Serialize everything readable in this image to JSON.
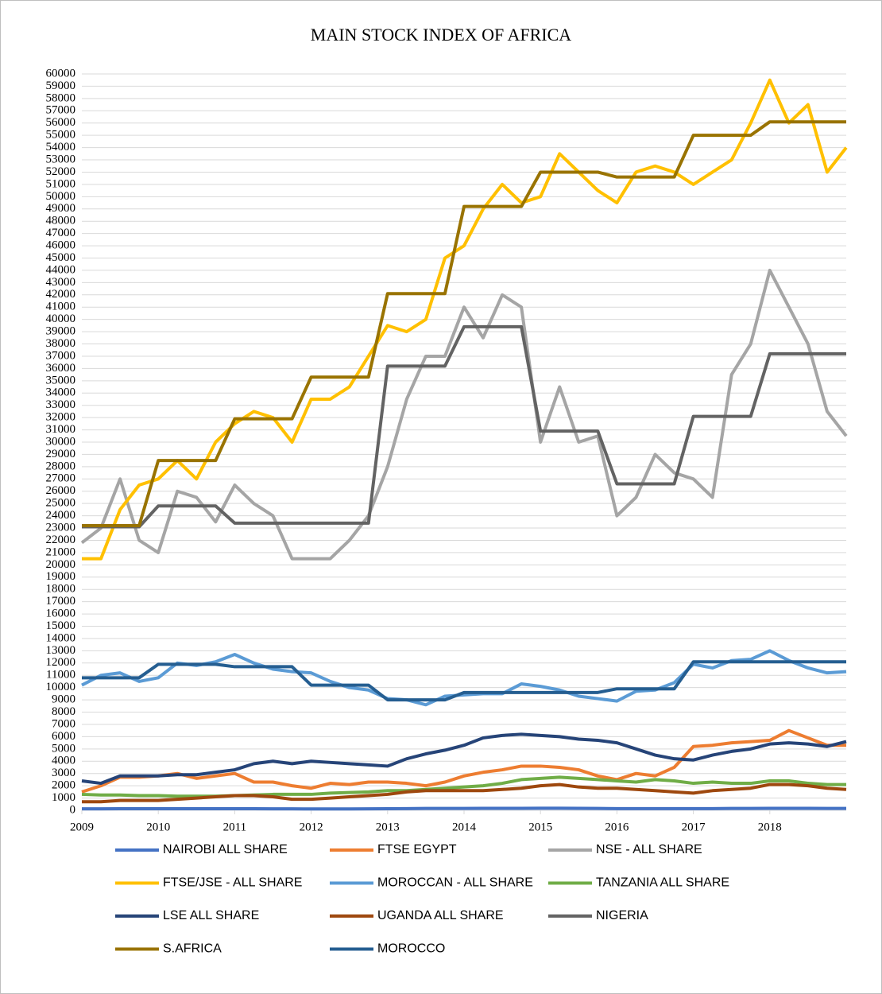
{
  "chart_data": {
    "type": "line",
    "title": "MAIN STOCK INDEX OF AFRICA",
    "x": [
      2009,
      2009.25,
      2009.5,
      2009.75,
      2010,
      2010.25,
      2010.5,
      2010.75,
      2011,
      2011.25,
      2011.5,
      2011.75,
      2012,
      2012.25,
      2012.5,
      2012.75,
      2013,
      2013.25,
      2013.5,
      2013.75,
      2014,
      2014.25,
      2014.5,
      2014.75,
      2015,
      2015.25,
      2015.5,
      2015.75,
      2016,
      2016.25,
      2016.5,
      2016.75,
      2017,
      2017.25,
      2017.5,
      2017.75,
      2018,
      2018.25,
      2018.5,
      2018.75,
      2019
    ],
    "xlim": [
      2009,
      2019
    ],
    "xticks": [
      2009,
      2010,
      2011,
      2012,
      2013,
      2014,
      2015,
      2016,
      2017,
      2018
    ],
    "ylim": [
      0,
      60000
    ],
    "yticks": [
      0,
      1000,
      2000,
      3000,
      4000,
      5000,
      6000,
      7000,
      8000,
      9000,
      10000,
      11000,
      12000,
      13000,
      14000,
      15000,
      16000,
      17000,
      18000,
      19000,
      20000,
      21000,
      22000,
      23000,
      24000,
      25000,
      26000,
      27000,
      28000,
      29000,
      30000,
      31000,
      32000,
      33000,
      34000,
      35000,
      36000,
      37000,
      38000,
      39000,
      40000,
      41000,
      42000,
      43000,
      44000,
      45000,
      46000,
      47000,
      48000,
      49000,
      50000,
      51000,
      52000,
      53000,
      54000,
      55000,
      56000,
      57000,
      58000,
      59000,
      60000
    ],
    "grid": true,
    "legend": "bottom",
    "series": [
      {
        "name": "NAIROBI ALL SHARE",
        "color": "#4472c4",
        "values": [
          120,
          120,
          130,
          130,
          130,
          130,
          130,
          130,
          130,
          130,
          120,
          120,
          110,
          110,
          110,
          120,
          130,
          140,
          150,
          150,
          150,
          160,
          160,
          160,
          170,
          170,
          160,
          150,
          140,
          140,
          140,
          140,
          140,
          140,
          150,
          150,
          160,
          160,
          160,
          150,
          150
        ]
      },
      {
        "name": "FTSE EGYPT",
        "color": "#ed7d31",
        "values": [
          1500,
          2000,
          2700,
          2700,
          2800,
          3000,
          2600,
          2800,
          3000,
          2300,
          2300,
          2000,
          1800,
          2200,
          2100,
          2300,
          2300,
          2200,
          2000,
          2300,
          2800,
          3100,
          3300,
          3600,
          3600,
          3500,
          3300,
          2800,
          2500,
          3000,
          2800,
          3500,
          5200,
          5300,
          5500,
          5600,
          5700,
          6500,
          5900,
          5300,
          5300
        ]
      },
      {
        "name": "NSE - ALL SHARE",
        "color": "#a5a5a5",
        "values": [
          21800,
          23000,
          27000,
          22000,
          21000,
          26000,
          25500,
          23500,
          26500,
          25000,
          24000,
          20500,
          20500,
          20500,
          22000,
          24000,
          28000,
          33500,
          37000,
          37000,
          41000,
          38500,
          42000,
          41000,
          30000,
          34500,
          30000,
          30500,
          24000,
          25500,
          29000,
          27500,
          27000,
          25500,
          35500,
          38000,
          44000,
          41000,
          38000,
          32500,
          30500
        ]
      },
      {
        "name": "FTSE/JSE - ALL SHARE",
        "color": "#ffc000",
        "values": [
          20500,
          20500,
          24500,
          26500,
          27000,
          28500,
          27000,
          30000,
          31500,
          32500,
          32000,
          30000,
          33500,
          33500,
          34500,
          37000,
          39500,
          39000,
          40000,
          45000,
          46000,
          49000,
          51000,
          49500,
          50000,
          53500,
          52000,
          50500,
          49500,
          52000,
          52500,
          52000,
          51000,
          52000,
          53000,
          56000,
          59500,
          56000,
          57500,
          52000,
          54000
        ]
      },
      {
        "name": "MOROCCAN - ALL SHARE",
        "color": "#5b9bd5",
        "values": [
          10200,
          11000,
          11200,
          10500,
          10800,
          12000,
          11800,
          12100,
          12700,
          12000,
          11500,
          11300,
          11200,
          10500,
          10000,
          9800,
          9100,
          9000,
          8600,
          9300,
          9400,
          9500,
          9500,
          10300,
          10100,
          9800,
          9300,
          9100,
          8900,
          9700,
          9800,
          10400,
          11900,
          11600,
          12200,
          12300,
          13000,
          12200,
          11600,
          11200,
          11300
        ]
      },
      {
        "name": "TANZANIA ALL SHARE",
        "color": "#70ad47",
        "values": [
          1300,
          1250,
          1250,
          1200,
          1200,
          1150,
          1150,
          1150,
          1200,
          1250,
          1300,
          1300,
          1300,
          1400,
          1450,
          1500,
          1600,
          1600,
          1700,
          1800,
          1900,
          2000,
          2200,
          2500,
          2600,
          2700,
          2600,
          2500,
          2400,
          2300,
          2500,
          2400,
          2200,
          2300,
          2200,
          2200,
          2400,
          2400,
          2200,
          2100,
          2100
        ]
      },
      {
        "name": "LSE ALL SHARE",
        "color": "#264478",
        "values": [
          2400,
          2200,
          2800,
          2800,
          2800,
          2900,
          2900,
          3100,
          3300,
          3800,
          4000,
          3800,
          4000,
          3900,
          3800,
          3700,
          3600,
          4200,
          4600,
          4900,
          5300,
          5900,
          6100,
          6200,
          6100,
          6000,
          5800,
          5700,
          5500,
          5000,
          4500,
          4200,
          4100,
          4500,
          4800,
          5000,
          5400,
          5500,
          5400,
          5200,
          5600
        ]
      },
      {
        "name": "UGANDA ALL SHARE",
        "color": "#9e480e",
        "values": [
          700,
          700,
          800,
          800,
          800,
          900,
          1000,
          1100,
          1200,
          1200,
          1100,
          900,
          900,
          1000,
          1100,
          1200,
          1300,
          1500,
          1600,
          1600,
          1600,
          1600,
          1700,
          1800,
          2000,
          2100,
          1900,
          1800,
          1800,
          1700,
          1600,
          1500,
          1400,
          1600,
          1700,
          1800,
          2100,
          2100,
          2000,
          1800,
          1700
        ]
      },
      {
        "name": "NIGERIA",
        "color": "#636363",
        "values": [
          23100,
          23100,
          23100,
          23100,
          24800,
          24800,
          24800,
          24800,
          23400,
          23400,
          23400,
          23400,
          23400,
          23400,
          23400,
          23400,
          36200,
          36200,
          36200,
          36200,
          39400,
          39400,
          39400,
          39400,
          30900,
          30900,
          30900,
          30900,
          26600,
          26600,
          26600,
          26600,
          32100,
          32100,
          32100,
          32100,
          37200,
          37200,
          37200,
          37200,
          37200
        ]
      },
      {
        "name": "S.AFRICA",
        "color": "#997300",
        "values": [
          23200,
          23200,
          23200,
          23200,
          28500,
          28500,
          28500,
          28500,
          31900,
          31900,
          31900,
          31900,
          35300,
          35300,
          35300,
          35300,
          42100,
          42100,
          42100,
          42100,
          49200,
          49200,
          49200,
          49200,
          52000,
          52000,
          52000,
          52000,
          51600,
          51600,
          51600,
          51600,
          55000,
          55000,
          55000,
          55000,
          56100,
          56100,
          56100,
          56100,
          56100
        ]
      },
      {
        "name": "MOROCCO",
        "color": "#255e91",
        "values": [
          10800,
          10800,
          10800,
          10800,
          11900,
          11900,
          11900,
          11900,
          11700,
          11700,
          11700,
          11700,
          10200,
          10200,
          10200,
          10200,
          9000,
          9000,
          9000,
          9000,
          9600,
          9600,
          9600,
          9600,
          9600,
          9600,
          9600,
          9600,
          9900,
          9900,
          9900,
          9900,
          12100,
          12100,
          12100,
          12100,
          12100,
          12100,
          12100,
          12100,
          12100
        ]
      }
    ]
  }
}
